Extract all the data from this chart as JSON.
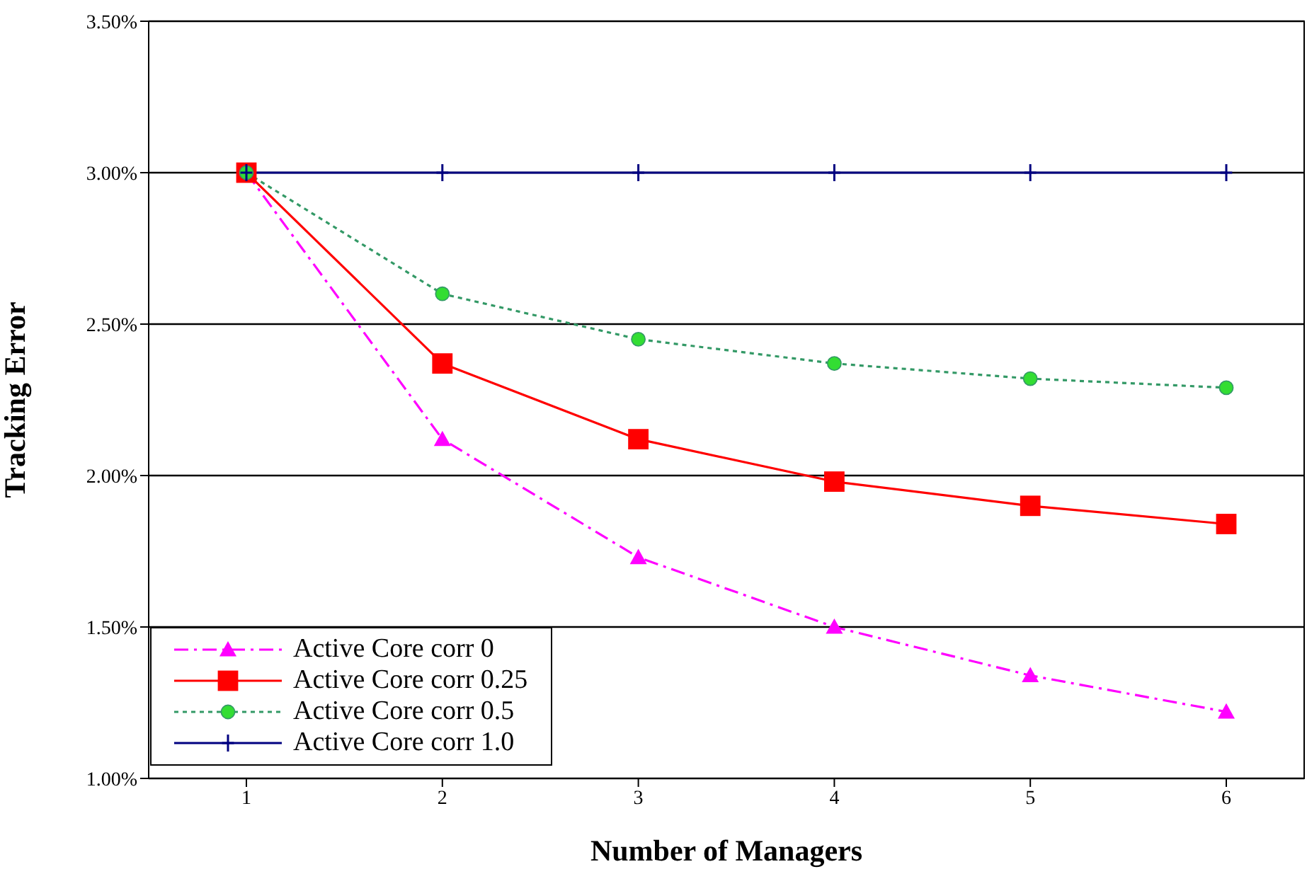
{
  "chart_data": {
    "type": "line",
    "xlabel": "Number of Managers",
    "ylabel": "Tracking Error",
    "categories": [
      "1",
      "2",
      "3",
      "4",
      "5",
      "6"
    ],
    "series": [
      {
        "name": "Active Core corr 0",
        "color": "#ff00ff",
        "marker": "triangle",
        "line_style": "dashed",
        "values": [
          3.0,
          2.12,
          1.73,
          1.5,
          1.34,
          1.22
        ]
      },
      {
        "name": "Active Core corr 0.25",
        "color": "#ff0000",
        "marker": "square",
        "line_style": "solid",
        "values": [
          3.0,
          2.37,
          2.12,
          1.98,
          1.9,
          1.84
        ]
      },
      {
        "name": "Active Core corr 0.5",
        "color": "#339966",
        "marker": "circle",
        "line_style": "dotted",
        "values": [
          3.0,
          2.6,
          2.45,
          2.37,
          2.32,
          2.29
        ]
      },
      {
        "name": "Active Core corr 1.0",
        "color": "#000080",
        "marker": "cross",
        "line_style": "solid",
        "values": [
          3.0,
          3.0,
          3.0,
          3.0,
          3.0,
          3.0
        ]
      }
    ],
    "ylim": [
      1.0,
      3.5
    ],
    "yticks": [
      {
        "value": 1.0,
        "label": "1.00%"
      },
      {
        "value": 1.5,
        "label": "1.50%"
      },
      {
        "value": 2.0,
        "label": "2.00%"
      },
      {
        "value": 2.5,
        "label": "2.50%"
      },
      {
        "value": 3.0,
        "label": "3.00%"
      },
      {
        "value": 3.5,
        "label": "3.50%"
      }
    ],
    "grid": "y",
    "legend": "bottom left"
  }
}
